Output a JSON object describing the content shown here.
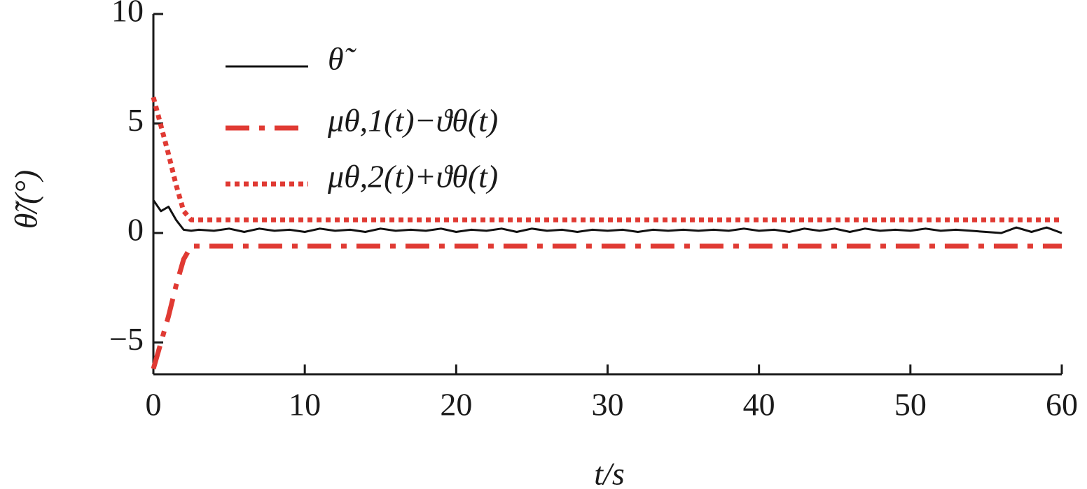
{
  "chart_data": {
    "type": "line",
    "xlabel": "t/s",
    "ylabel": "θ̃/(°)",
    "x": [
      0,
      0.5,
      1,
      1.5,
      2,
      2.5,
      3,
      4,
      5,
      6,
      7,
      8,
      9,
      10,
      11,
      12,
      13,
      14,
      15,
      16,
      17,
      18,
      19,
      20,
      21,
      22,
      23,
      24,
      25,
      26,
      27,
      28,
      29,
      30,
      31,
      32,
      33,
      34,
      35,
      36,
      37,
      38,
      39,
      40,
      41,
      42,
      43,
      44,
      45,
      46,
      47,
      48,
      49,
      50,
      51,
      52,
      53,
      54,
      55,
      56,
      57,
      58,
      59,
      60
    ],
    "series": [
      {
        "name": "θ̃",
        "color": "#111111",
        "style": "solid",
        "values": [
          1.5,
          1.0,
          1.2,
          0.6,
          0.15,
          0.1,
          0.15,
          0.1,
          0.2,
          0.05,
          0.2,
          0.1,
          0.15,
          0.05,
          0.2,
          0.1,
          0.15,
          0.05,
          0.2,
          0.1,
          0.15,
          0.1,
          0.2,
          0.05,
          0.15,
          0.1,
          0.2,
          0.05,
          0.2,
          0.1,
          0.15,
          0.05,
          0.15,
          0.1,
          0.15,
          0.05,
          0.15,
          0.1,
          0.15,
          0.1,
          0.15,
          0.1,
          0.2,
          0.1,
          0.15,
          0.05,
          0.2,
          0.1,
          0.2,
          0.05,
          0.2,
          0.1,
          0.15,
          0.1,
          0.2,
          0.1,
          0.15,
          0.1,
          0.05,
          0.0,
          0.25,
          0.05,
          0.25,
          0.0
        ]
      },
      {
        "name": "μθ,1(t)−ϑθ(t)",
        "color": "#e03a33",
        "style": "dashdot",
        "values": [
          -6.2,
          -5.0,
          -3.8,
          -2.4,
          -1.2,
          -0.6,
          -0.6,
          -0.6,
          -0.6,
          -0.6,
          -0.6,
          -0.6,
          -0.6,
          -0.6,
          -0.6,
          -0.6,
          -0.6,
          -0.6,
          -0.6,
          -0.6,
          -0.6,
          -0.6,
          -0.6,
          -0.6,
          -0.6,
          -0.6,
          -0.6,
          -0.6,
          -0.6,
          -0.6,
          -0.6,
          -0.6,
          -0.6,
          -0.6,
          -0.6,
          -0.6,
          -0.6,
          -0.6,
          -0.6,
          -0.6,
          -0.6,
          -0.6,
          -0.6,
          -0.6,
          -0.6,
          -0.6,
          -0.6,
          -0.6,
          -0.6,
          -0.6,
          -0.6,
          -0.6,
          -0.6,
          -0.6,
          -0.6,
          -0.6,
          -0.6,
          -0.6,
          -0.6,
          -0.6,
          -0.6,
          -0.6,
          -0.6,
          -0.6
        ]
      },
      {
        "name": "μθ,2(t)+ϑθ(t)",
        "color": "#e03a33",
        "style": "dotted",
        "values": [
          6.2,
          4.9,
          3.6,
          2.2,
          1.0,
          0.6,
          0.6,
          0.6,
          0.6,
          0.6,
          0.6,
          0.6,
          0.6,
          0.6,
          0.6,
          0.6,
          0.6,
          0.6,
          0.6,
          0.6,
          0.6,
          0.6,
          0.6,
          0.6,
          0.6,
          0.6,
          0.6,
          0.6,
          0.6,
          0.6,
          0.6,
          0.6,
          0.6,
          0.6,
          0.6,
          0.6,
          0.6,
          0.6,
          0.6,
          0.6,
          0.6,
          0.6,
          0.6,
          0.6,
          0.6,
          0.6,
          0.6,
          0.6,
          0.6,
          0.6,
          0.6,
          0.6,
          0.6,
          0.6,
          0.6,
          0.6,
          0.6,
          0.6,
          0.6,
          0.6,
          0.6,
          0.6,
          0.6,
          0.6
        ]
      }
    ],
    "xlim": [
      0,
      60
    ],
    "xticks": [
      0,
      10,
      20,
      30,
      40,
      50,
      60
    ],
    "ylim": [
      -6.45,
      10
    ],
    "yticks": [
      {
        "value": -5,
        "label": "−5"
      },
      0,
      5,
      10
    ],
    "legend": "upper-left"
  }
}
